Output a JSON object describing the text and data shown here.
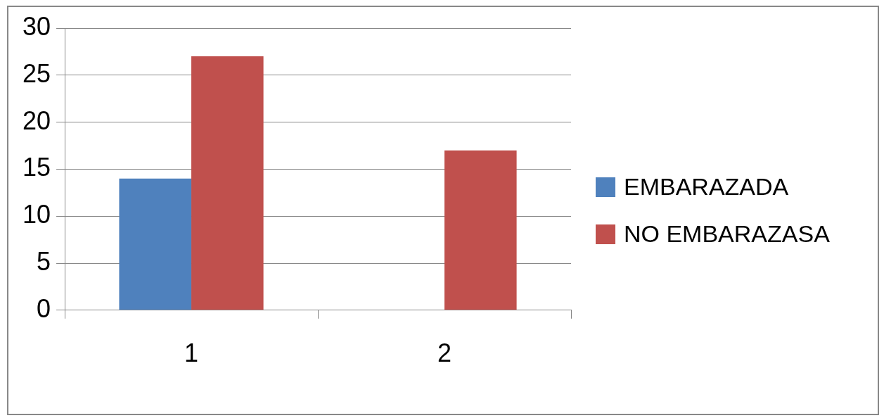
{
  "chart_data": {
    "type": "bar",
    "categories": [
      "1",
      "2"
    ],
    "series": [
      {
        "name": "EMBARAZADA",
        "color": "#4f81bd",
        "values": [
          14,
          0
        ]
      },
      {
        "name": "NO EMBARAZASA",
        "color": "#c0504d",
        "values": [
          27,
          17
        ]
      }
    ],
    "ylim": [
      0,
      30
    ],
    "yticks": [
      0,
      5,
      10,
      15,
      20,
      25,
      30
    ],
    "grid": "y",
    "legend": "right"
  }
}
